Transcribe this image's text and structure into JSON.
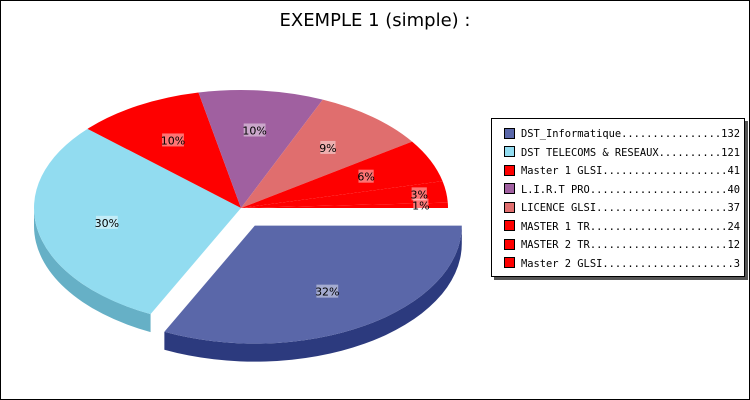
{
  "title": "EXEMPLE 1 (simple) :",
  "chart_data": {
    "type": "pie",
    "title": "EXEMPLE 1 (simple) :",
    "three_d": true,
    "exploded_slice": "DST_Informatique",
    "legend_position": "right",
    "slices": [
      {
        "label": "DST_Informatique",
        "value": 132,
        "percent_label": "32%",
        "color": "#5a67a9",
        "side": "#2c3a7e"
      },
      {
        "label": "DST TELECOMS & RESEAUX",
        "value": 121,
        "percent_label": "30%",
        "color": "#92dcf0",
        "side": "#66b0c6"
      },
      {
        "label": "Master 1 GLSI",
        "value": 41,
        "percent_label": "10%",
        "color": "#fe0000",
        "side": "#c80000"
      },
      {
        "label": "L.I.R.T PRO",
        "value": 40,
        "percent_label": "10%",
        "color": "#a060a0",
        "side": "#703a70"
      },
      {
        "label": "LICENCE GLSI",
        "value": 37,
        "percent_label": "9%",
        "color": "#e06e6e",
        "side": "#b04a4a"
      },
      {
        "label": "MASTER 1 TR",
        "value": 24,
        "percent_label": "6%",
        "color": "#fe0000",
        "side": "#c80000"
      },
      {
        "label": "MASTER 2 TR",
        "value": 12,
        "percent_label": "3%",
        "color": "#fe0000",
        "side": "#c80000"
      },
      {
        "label": "Master 2 GLSI",
        "value": 3,
        "percent_label": "1%",
        "color": "#fe0000",
        "side": "#c80000"
      }
    ]
  },
  "legend": {
    "entries": [
      {
        "text": "DST_Informatique................132",
        "color": "#5a67a9"
      },
      {
        "text": "DST TELECOMS & RESEAUX..........121",
        "color": "#92dcf0"
      },
      {
        "text": "Master 1 GLSI....................41",
        "color": "#fe0000"
      },
      {
        "text": "L.I.R.T PRO......................40",
        "color": "#a060a0"
      },
      {
        "text": "LICENCE GLSI.....................37",
        "color": "#e06e6e"
      },
      {
        "text": "MASTER 1 TR......................24",
        "color": "#fe0000"
      },
      {
        "text": "MASTER 2 TR......................12",
        "color": "#fe0000"
      },
      {
        "text": "Master 2 GLSI.....................3",
        "color": "#fe0000"
      }
    ]
  }
}
